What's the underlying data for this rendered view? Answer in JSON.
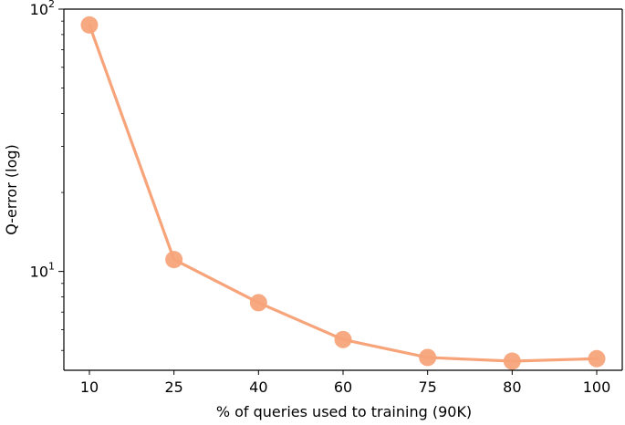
{
  "chart_data": {
    "type": "line",
    "title": "",
    "xlabel": "% of queries used to training (90K)",
    "ylabel": "Q-error (log)",
    "yscale": "log",
    "ylim": [
      4.2,
      100
    ],
    "x_ticks": [
      "10",
      "25",
      "40",
      "60",
      "75",
      "80",
      "100"
    ],
    "y_ticks": [
      {
        "value": 10,
        "base": "10",
        "exp": "1"
      },
      {
        "value": 100,
        "base": "10",
        "exp": "2"
      }
    ],
    "grid": false,
    "legend": "none",
    "series": [
      {
        "color": "#f7a47a",
        "x": [
          10,
          25,
          40,
          60,
          75,
          80,
          100
        ],
        "values": [
          87,
          11.1,
          7.6,
          5.5,
          4.7,
          4.55,
          4.65
        ]
      }
    ]
  }
}
